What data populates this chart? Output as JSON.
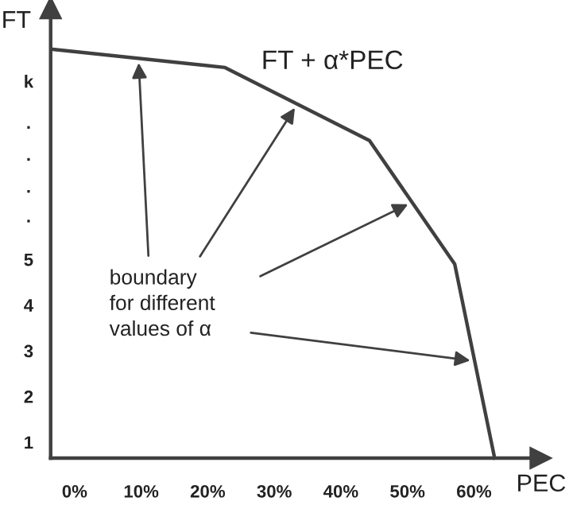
{
  "chart_data": {
    "type": "line",
    "xlabel": "PEC",
    "ylabel": "FT",
    "x": [
      -3.3,
      22.6,
      44.3,
      57.1,
      63.1
    ],
    "series": [
      {
        "color": "#404040",
        "values": [
          9.6,
          9.2,
          7.6,
          4.9,
          0.65
        ]
      }
    ],
    "xlim": [
      -3.6,
      70
    ],
    "ylim": [
      0.65,
      10.5
    ],
    "xticks": [
      {
        "value": 0,
        "label": "0%"
      },
      {
        "value": 10,
        "label": "10%"
      },
      {
        "value": 20,
        "label": "20%"
      },
      {
        "value": 30,
        "label": "30%"
      },
      {
        "value": 40,
        "label": "40%"
      },
      {
        "value": 50,
        "label": "50%"
      },
      {
        "value": 60,
        "label": "60%"
      }
    ],
    "yticks": [
      1,
      2,
      3,
      4,
      5,
      {
        "value": 5.95,
        "label": "."
      },
      {
        "value": 6.6,
        "label": "."
      },
      {
        "value": 7.3,
        "label": "."
      },
      {
        "value": 8.0,
        "label": "."
      },
      {
        "value": 8.9,
        "label": "k"
      }
    ],
    "annotations": [
      "FT + α*PEC",
      {
        "text": "boundary\nfor different\nvalues of α",
        "x": 9.6,
        "y": 9.4
      }
    ],
    "grid": false,
    "legend": false,
    "marker": "none",
    "line_style": "solid"
  }
}
